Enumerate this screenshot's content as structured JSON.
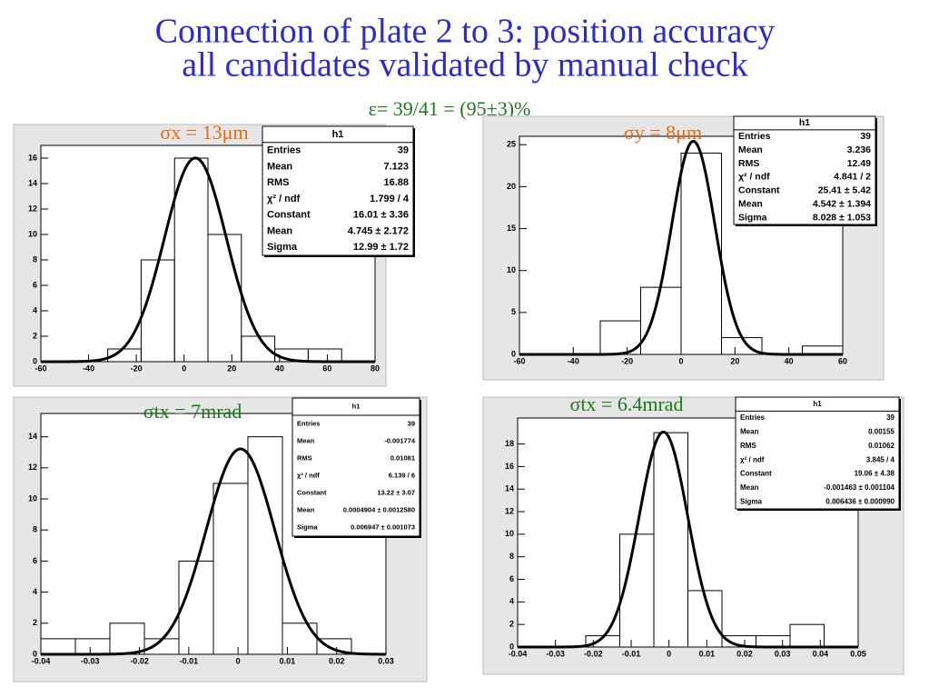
{
  "title": [
    "Connection of plate 2 to 3: position accuracy",
    "all candidates validated by manual check"
  ],
  "efficiency": "ε= 39/41 = (95±3)%",
  "chart_data": [
    {
      "type": "histogram",
      "annotation": "σx = 13μm",
      "color": "#000000",
      "bins": [
        -60,
        -46,
        -32,
        -18,
        -4,
        10,
        24,
        38,
        52,
        66,
        80
      ],
      "counts": [
        0,
        0,
        1,
        8,
        16,
        10,
        2,
        1,
        1,
        0
      ],
      "xlim": [
        -60,
        80
      ],
      "ylim": [
        0,
        17
      ],
      "xticks": [
        -60,
        -40,
        -20,
        0,
        20,
        40,
        60,
        80
      ],
      "yticks": [
        0,
        2,
        4,
        6,
        8,
        10,
        12,
        14,
        16
      ],
      "fit": {
        "constant": 16.01,
        "mean": 4.745,
        "sigma": 12.99
      },
      "stats": {
        "title": "h1",
        "rows": [
          [
            "Entries",
            "39"
          ],
          [
            "Mean",
            "7.123"
          ],
          [
            "RMS",
            "16.88"
          ],
          [
            "χ² / ndf",
            "1.799 / 4"
          ],
          [
            "Constant",
            "16.01 ± 3.36"
          ],
          [
            "Mean",
            "4.745 ± 2.172"
          ],
          [
            "Sigma",
            "12.99 ± 1.72"
          ]
        ]
      }
    },
    {
      "type": "histogram",
      "annotation": "σy = 8μm",
      "color": "#000000",
      "bins": [
        -60,
        -45,
        -30,
        -15,
        0,
        15,
        30,
        45,
        60
      ],
      "counts": [
        0,
        0,
        4,
        8,
        24,
        2,
        0,
        1
      ],
      "xlim": [
        -60,
        60
      ],
      "ylim": [
        0,
        26
      ],
      "xticks": [
        -60,
        -40,
        -20,
        0,
        20,
        40,
        60
      ],
      "yticks": [
        0,
        5,
        10,
        15,
        20,
        25
      ],
      "fit": {
        "constant": 25.41,
        "mean": 4.542,
        "sigma": 8.028
      },
      "stats": {
        "title": "h1",
        "rows": [
          [
            "Entries",
            "39"
          ],
          [
            "Mean",
            "3.236"
          ],
          [
            "RMS",
            "12.49"
          ],
          [
            "χ² / ndf",
            "4.841 / 2"
          ],
          [
            "Constant",
            "25.41 ± 5.42"
          ],
          [
            "Mean",
            "4.542 ± 1.394"
          ],
          [
            "Sigma",
            "8.028 ± 1.053"
          ]
        ]
      }
    },
    {
      "type": "histogram",
      "annotation": "σtx = 7mrad",
      "color": "#000000",
      "bins": [
        -0.04,
        -0.033,
        -0.026,
        -0.019,
        -0.012,
        -0.005,
        0.002,
        0.009,
        0.016,
        0.023,
        0.03
      ],
      "counts": [
        1,
        1,
        2,
        1,
        6,
        11,
        14,
        2,
        1,
        0
      ],
      "xlim": [
        -0.04,
        0.03
      ],
      "ylim": [
        0,
        15.5
      ],
      "xticks": [
        -0.04,
        -0.03,
        -0.02,
        -0.01,
        0,
        0.01,
        0.02,
        0.03
      ],
      "yticks": [
        0,
        2,
        4,
        6,
        8,
        10,
        12,
        14
      ],
      "fit": {
        "constant": 13.22,
        "mean": 0.0004904,
        "sigma": 0.006947
      },
      "stats": {
        "title": "h1",
        "rows": [
          [
            "Entries",
            "39"
          ],
          [
            "Mean",
            "-0.001774"
          ],
          [
            "RMS",
            "0.01081"
          ],
          [
            "χ² / ndf",
            "6.139 / 6"
          ],
          [
            "Constant",
            "13.22 ± 3.07"
          ],
          [
            "Mean",
            "0.0004904 ± 0.0012580"
          ],
          [
            "Sigma",
            "0.006947 ± 0.001073"
          ]
        ]
      }
    },
    {
      "type": "histogram",
      "annotation": "σtx = 6.4mrad",
      "color": "#000000",
      "bins": [
        -0.04,
        -0.031,
        -0.022,
        -0.013,
        -0.004,
        0.005,
        0.014,
        0.023,
        0.032,
        0.041,
        0.05
      ],
      "counts": [
        0,
        0,
        1,
        10,
        19,
        5,
        1,
        1,
        2,
        0
      ],
      "xlim": [
        -0.04,
        0.05
      ],
      "ylim": [
        0,
        20.3
      ],
      "xticks": [
        -0.04,
        -0.03,
        -0.02,
        -0.01,
        0,
        0.01,
        0.02,
        0.03,
        0.04,
        0.05
      ],
      "yticks": [
        0,
        2,
        4,
        6,
        8,
        10,
        12,
        14,
        16,
        18
      ],
      "fit": {
        "constant": 19.06,
        "mean": -0.001463,
        "sigma": 0.006436
      },
      "stats": {
        "title": "h1",
        "rows": [
          [
            "Entries",
            "39"
          ],
          [
            "Mean",
            "0.00155"
          ],
          [
            "RMS",
            "0.01062"
          ],
          [
            "χ² / ndf",
            "3.845 / 4"
          ],
          [
            "Constant",
            "19.06 ± 4.38"
          ],
          [
            "Mean",
            "-0.001463 ± 0.001104"
          ],
          [
            "Sigma",
            "0.006436 ± 0.000990"
          ]
        ]
      }
    }
  ]
}
